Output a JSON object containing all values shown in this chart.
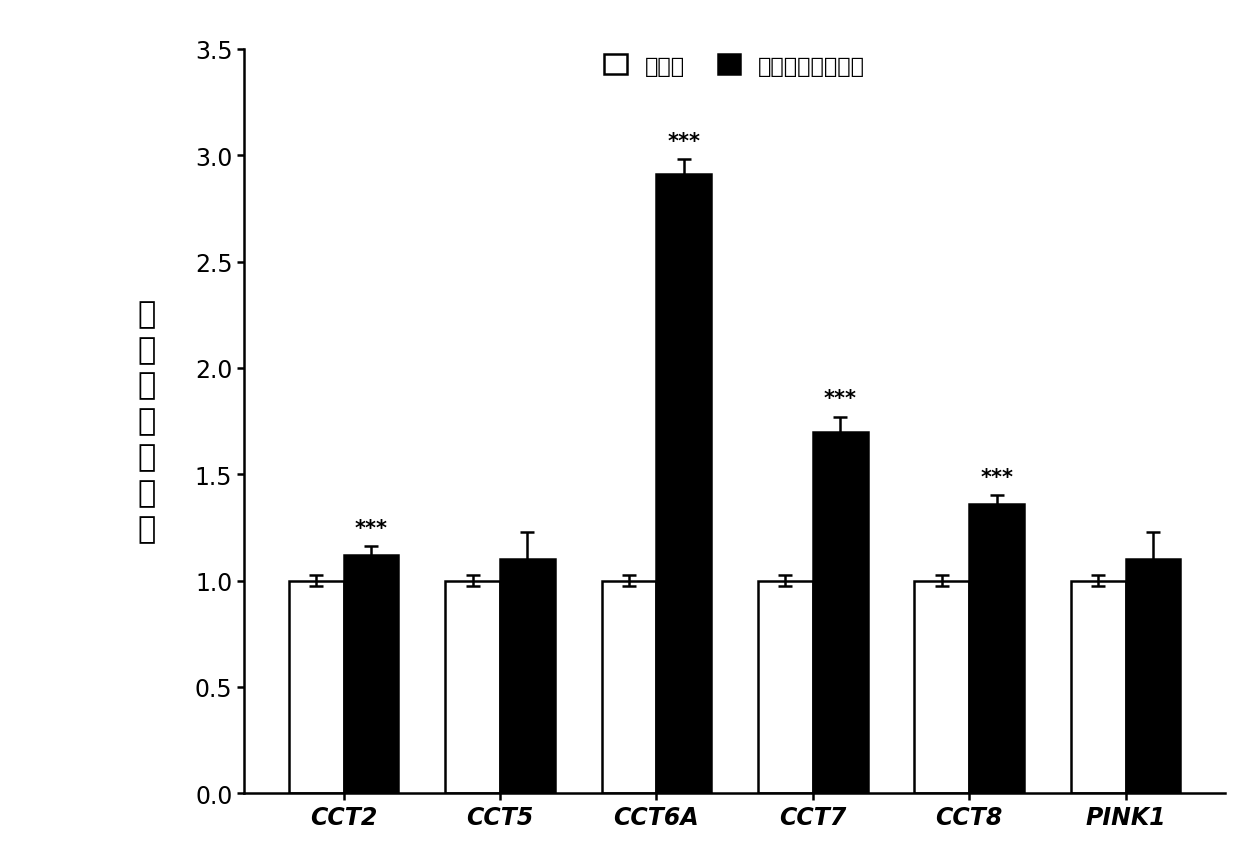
{
  "categories": [
    "CCT2",
    "CCT5",
    "CCT6A",
    "CCT7",
    "CCT8",
    "PINK1"
  ],
  "control_values": [
    1.0,
    1.0,
    1.0,
    1.0,
    1.0,
    1.0
  ],
  "treatment_values": [
    1.12,
    1.1,
    2.91,
    1.7,
    1.36,
    1.1
  ],
  "control_errors": [
    0.025,
    0.025,
    0.025,
    0.025,
    0.025,
    0.025
  ],
  "treatment_errors": [
    0.04,
    0.13,
    0.07,
    0.07,
    0.04,
    0.13
  ],
  "significance": [
    "***",
    null,
    "***",
    "***",
    "***",
    null
  ],
  "ylabel_chars": [
    "基",
    "因",
    "相",
    "对",
    "表",
    "现",
    "量"
  ],
  "legend_control": "控制组",
  "legend_treatment": "苦跥麦种皮萝取物",
  "ylim": [
    0,
    3.5
  ],
  "yticks": [
    0,
    0.5,
    1.0,
    1.5,
    2.0,
    2.5,
    3.0,
    3.5
  ],
  "bar_width": 0.35,
  "control_color": "white",
  "treatment_color": "black",
  "control_edgecolor": "black",
  "treatment_edgecolor": "black",
  "background_color": "white",
  "sig_fontsize": 15,
  "tick_fontsize": 17,
  "legend_fontsize": 16,
  "ylabel_fontsize": 22,
  "xlabel_fontsize": 17
}
